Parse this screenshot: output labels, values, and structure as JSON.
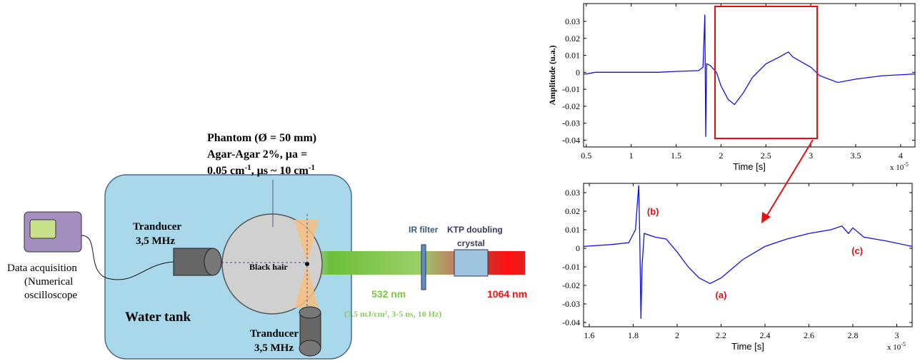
{
  "diagram": {
    "phantom": [
      "Phantom (Ø = 50 mm)",
      "Agar-Agar 2%, µa ="
    ],
    "phantom_line3": [
      "0.05  cm",
      "-1",
      ", µs ~ 10 cm",
      "-1"
    ],
    "transducer_left": [
      "Tranducer",
      "3,5 MHz"
    ],
    "transducer_bottom": [
      "Tranducer",
      "3,5 MHz"
    ],
    "acquisition": [
      "Data acquisition",
      "(Numerical",
      "oscilloscope"
    ],
    "black_hair": "Black hair",
    "water_tank": "Water tank",
    "ir_filter": "IR filter",
    "ktp": [
      "KTP doubling",
      "crystal"
    ],
    "green": "532 nm",
    "red": "1064 nm",
    "pulse": "(7.5 mJ/cm², 3-5 ns, 10 Hz)"
  },
  "chart_data": [
    {
      "type": "line",
      "ylabel": "Amplitude (u.a.)",
      "xlabel": "Time [s]",
      "x_multiplier": "x 10",
      "x_multiplier_exp": "-5",
      "color": "#1010ee",
      "x": [
        0.47,
        0.5,
        0.6,
        0.8,
        1.0,
        1.3,
        1.5,
        1.75,
        1.8,
        1.82,
        1.83,
        1.84,
        1.88,
        1.95,
        2.0,
        2.08,
        2.15,
        2.25,
        2.35,
        2.5,
        2.65,
        2.75,
        2.8,
        2.9,
        3.0,
        3.1,
        3.3,
        3.5,
        3.8,
        4.16
      ],
      "values": [
        -0.001,
        -0.001,
        0.0,
        0.0,
        0.0,
        0.0,
        0.0005,
        0.001,
        0.003,
        0.034,
        -0.038,
        0.005,
        0.004,
        0.0,
        -0.008,
        -0.016,
        -0.019,
        -0.012,
        -0.003,
        0.005,
        0.009,
        0.012,
        0.009,
        0.006,
        0.003,
        -0.002,
        -0.006,
        -0.004,
        -0.002,
        -0.001
      ],
      "xlim": [
        0.47,
        4.16
      ],
      "ylim": [
        -0.044,
        0.0405
      ],
      "xticks": [
        0.5,
        1,
        1.5,
        2,
        2.5,
        3,
        3.5,
        4
      ],
      "yticks": [
        -0.04,
        -0.03,
        -0.02,
        -0.01,
        0,
        0.01,
        0.02,
        0.03
      ]
    },
    {
      "type": "line",
      "xlabel": "Time [s]",
      "x_multiplier": "x 10",
      "x_multiplier_exp": "-5",
      "color": "#1010ee",
      "x": [
        1.574,
        1.7,
        1.78,
        1.81,
        1.825,
        1.83,
        1.835,
        1.84,
        1.85,
        1.9,
        1.95,
        2.0,
        2.05,
        2.1,
        2.15,
        2.2,
        2.3,
        2.4,
        2.5,
        2.6,
        2.7,
        2.75,
        2.78,
        2.8,
        2.85,
        2.95,
        3.07
      ],
      "values": [
        0.001,
        0.002,
        0.003,
        0.01,
        0.034,
        0.005,
        -0.038,
        -0.01,
        0.008,
        0.006,
        0.005,
        -0.002,
        -0.01,
        -0.016,
        -0.019,
        -0.016,
        -0.006,
        0.001,
        0.005,
        0.008,
        0.01,
        0.012,
        0.008,
        0.011,
        0.006,
        0.004,
        0.001
      ],
      "xlim": [
        1.574,
        3.07
      ],
      "ylim": [
        -0.0423,
        0.035
      ],
      "xticks": [
        1.6,
        1.8,
        2,
        2.2,
        2.4,
        2.6,
        2.8,
        3
      ],
      "yticks": [
        -0.04,
        -0.03,
        -0.02,
        -0.01,
        0,
        0.01,
        0.02,
        0.03
      ],
      "annotations": [
        "(b)",
        "(a)",
        "(c)"
      ]
    }
  ]
}
